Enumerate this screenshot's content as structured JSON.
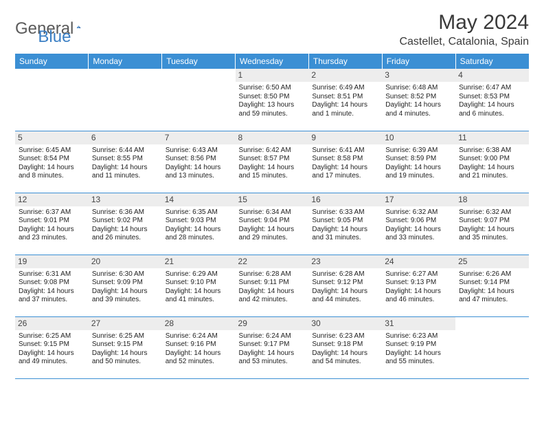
{
  "logo": {
    "text1": "General",
    "text2": "Blue"
  },
  "title": "May 2024",
  "location": "Castellet, Catalonia, Spain",
  "colors": {
    "header_bg": "#3b8fd4",
    "header_text": "#ffffff",
    "daynum_bg": "#ededed",
    "border": "#3b8fd4",
    "logo_gray": "#5a5a5a",
    "logo_blue": "#3b7fc4"
  },
  "dayHeaders": [
    "Sunday",
    "Monday",
    "Tuesday",
    "Wednesday",
    "Thursday",
    "Friday",
    "Saturday"
  ],
  "weeks": [
    [
      null,
      null,
      null,
      {
        "d": "1",
        "sr": "6:50 AM",
        "ss": "8:50 PM",
        "dl": "13 hours and 59 minutes."
      },
      {
        "d": "2",
        "sr": "6:49 AM",
        "ss": "8:51 PM",
        "dl": "14 hours and 1 minute."
      },
      {
        "d": "3",
        "sr": "6:48 AM",
        "ss": "8:52 PM",
        "dl": "14 hours and 4 minutes."
      },
      {
        "d": "4",
        "sr": "6:47 AM",
        "ss": "8:53 PM",
        "dl": "14 hours and 6 minutes."
      }
    ],
    [
      {
        "d": "5",
        "sr": "6:45 AM",
        "ss": "8:54 PM",
        "dl": "14 hours and 8 minutes."
      },
      {
        "d": "6",
        "sr": "6:44 AM",
        "ss": "8:55 PM",
        "dl": "14 hours and 11 minutes."
      },
      {
        "d": "7",
        "sr": "6:43 AM",
        "ss": "8:56 PM",
        "dl": "14 hours and 13 minutes."
      },
      {
        "d": "8",
        "sr": "6:42 AM",
        "ss": "8:57 PM",
        "dl": "14 hours and 15 minutes."
      },
      {
        "d": "9",
        "sr": "6:41 AM",
        "ss": "8:58 PM",
        "dl": "14 hours and 17 minutes."
      },
      {
        "d": "10",
        "sr": "6:39 AM",
        "ss": "8:59 PM",
        "dl": "14 hours and 19 minutes."
      },
      {
        "d": "11",
        "sr": "6:38 AM",
        "ss": "9:00 PM",
        "dl": "14 hours and 21 minutes."
      }
    ],
    [
      {
        "d": "12",
        "sr": "6:37 AM",
        "ss": "9:01 PM",
        "dl": "14 hours and 23 minutes."
      },
      {
        "d": "13",
        "sr": "6:36 AM",
        "ss": "9:02 PM",
        "dl": "14 hours and 26 minutes."
      },
      {
        "d": "14",
        "sr": "6:35 AM",
        "ss": "9:03 PM",
        "dl": "14 hours and 28 minutes."
      },
      {
        "d": "15",
        "sr": "6:34 AM",
        "ss": "9:04 PM",
        "dl": "14 hours and 29 minutes."
      },
      {
        "d": "16",
        "sr": "6:33 AM",
        "ss": "9:05 PM",
        "dl": "14 hours and 31 minutes."
      },
      {
        "d": "17",
        "sr": "6:32 AM",
        "ss": "9:06 PM",
        "dl": "14 hours and 33 minutes."
      },
      {
        "d": "18",
        "sr": "6:32 AM",
        "ss": "9:07 PM",
        "dl": "14 hours and 35 minutes."
      }
    ],
    [
      {
        "d": "19",
        "sr": "6:31 AM",
        "ss": "9:08 PM",
        "dl": "14 hours and 37 minutes."
      },
      {
        "d": "20",
        "sr": "6:30 AM",
        "ss": "9:09 PM",
        "dl": "14 hours and 39 minutes."
      },
      {
        "d": "21",
        "sr": "6:29 AM",
        "ss": "9:10 PM",
        "dl": "14 hours and 41 minutes."
      },
      {
        "d": "22",
        "sr": "6:28 AM",
        "ss": "9:11 PM",
        "dl": "14 hours and 42 minutes."
      },
      {
        "d": "23",
        "sr": "6:28 AM",
        "ss": "9:12 PM",
        "dl": "14 hours and 44 minutes."
      },
      {
        "d": "24",
        "sr": "6:27 AM",
        "ss": "9:13 PM",
        "dl": "14 hours and 46 minutes."
      },
      {
        "d": "25",
        "sr": "6:26 AM",
        "ss": "9:14 PM",
        "dl": "14 hours and 47 minutes."
      }
    ],
    [
      {
        "d": "26",
        "sr": "6:25 AM",
        "ss": "9:15 PM",
        "dl": "14 hours and 49 minutes."
      },
      {
        "d": "27",
        "sr": "6:25 AM",
        "ss": "9:15 PM",
        "dl": "14 hours and 50 minutes."
      },
      {
        "d": "28",
        "sr": "6:24 AM",
        "ss": "9:16 PM",
        "dl": "14 hours and 52 minutes."
      },
      {
        "d": "29",
        "sr": "6:24 AM",
        "ss": "9:17 PM",
        "dl": "14 hours and 53 minutes."
      },
      {
        "d": "30",
        "sr": "6:23 AM",
        "ss": "9:18 PM",
        "dl": "14 hours and 54 minutes."
      },
      {
        "d": "31",
        "sr": "6:23 AM",
        "ss": "9:19 PM",
        "dl": "14 hours and 55 minutes."
      },
      null
    ]
  ],
  "labels": {
    "sunrise": "Sunrise: ",
    "sunset": "Sunset: ",
    "daylight": "Daylight: "
  }
}
